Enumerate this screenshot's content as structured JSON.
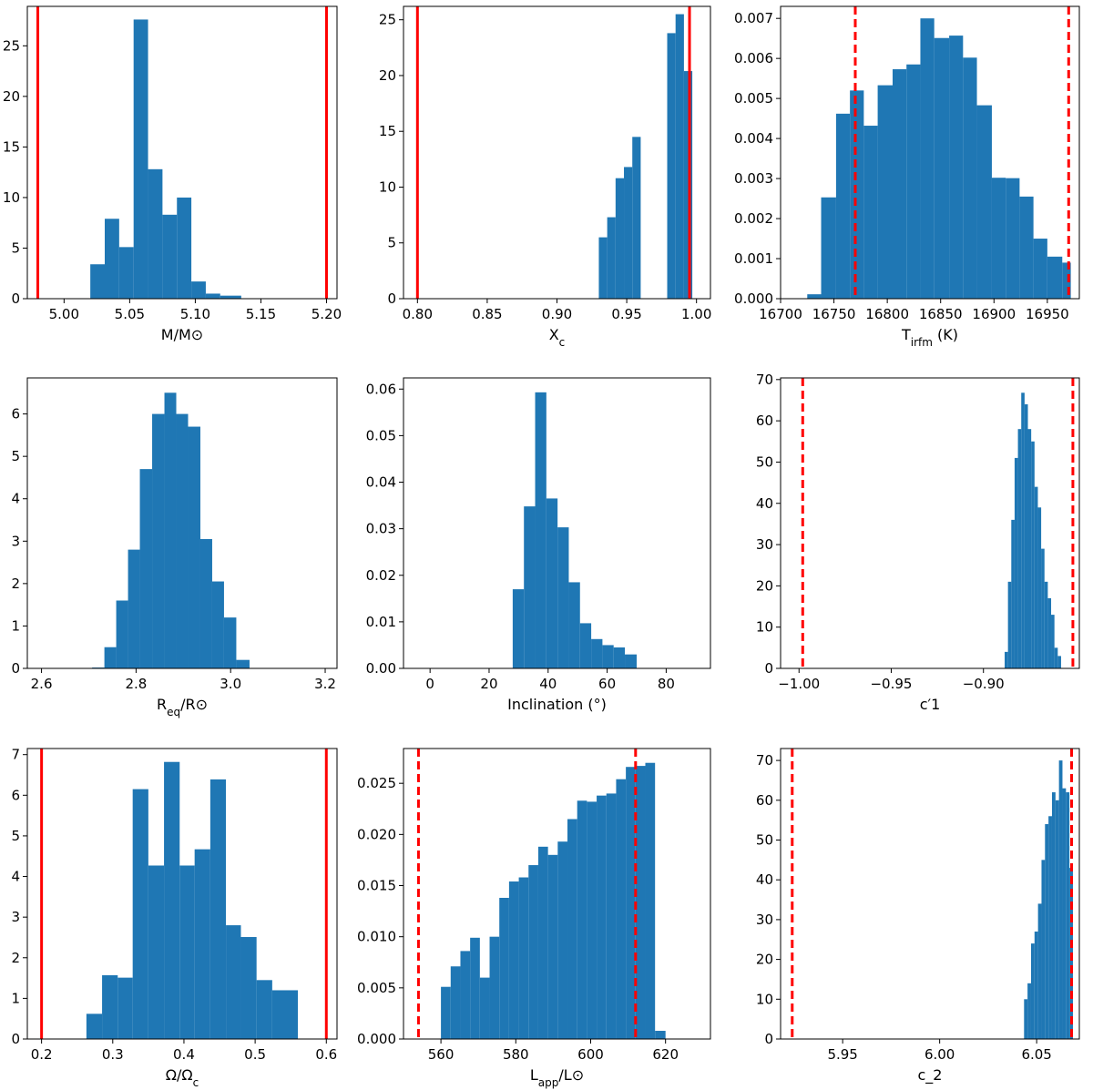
{
  "chart_data": [
    {
      "type": "bar",
      "xlabel": "M/M⊙",
      "xlim": [
        4.972,
        5.208
      ],
      "ylim": [
        0,
        28.9
      ],
      "xticks": [
        5.0,
        5.05,
        5.1,
        5.15,
        5.2
      ],
      "xtick_labels": [
        "5.00",
        "5.05",
        "5.10",
        "5.15",
        "5.20"
      ],
      "yticks": [
        0,
        5,
        10,
        15,
        20,
        25
      ],
      "ytick_labels": [
        "0",
        "5",
        "10",
        "15",
        "20",
        "25"
      ],
      "bins": [
        [
          5.02,
          5.031,
          3.4
        ],
        [
          5.031,
          5.042,
          7.9
        ],
        [
          5.042,
          5.053,
          5.1
        ],
        [
          5.053,
          5.064,
          27.6
        ],
        [
          5.064,
          5.075,
          12.8
        ],
        [
          5.075,
          5.086,
          8.3
        ],
        [
          5.086,
          5.097,
          10.0
        ],
        [
          5.097,
          5.108,
          1.7
        ],
        [
          5.108,
          5.119,
          0.5
        ],
        [
          5.119,
          5.135,
          0.3
        ]
      ],
      "lines": [
        {
          "x": 4.98,
          "style": "solid"
        },
        {
          "x": 5.2,
          "style": "solid"
        }
      ]
    },
    {
      "type": "bar",
      "xlabel": "X_c",
      "xlim": [
        0.79,
        1.01
      ],
      "ylim": [
        0,
        26.2
      ],
      "xticks": [
        0.8,
        0.85,
        0.9,
        0.95,
        1.0
      ],
      "xtick_labels": [
        "0.80",
        "0.85",
        "0.90",
        "0.95",
        "1.00"
      ],
      "yticks": [
        0,
        5,
        10,
        15,
        20,
        25
      ],
      "ytick_labels": [
        "0",
        "5",
        "10",
        "15",
        "20",
        "25"
      ],
      "bins": [
        [
          0.93,
          0.936,
          5.5
        ],
        [
          0.936,
          0.942,
          7.3
        ],
        [
          0.942,
          0.948,
          10.8
        ],
        [
          0.948,
          0.954,
          11.8
        ],
        [
          0.954,
          0.96,
          14.5
        ],
        [
          0.96,
          0.966,
          0.0
        ],
        [
          0.966,
          0.973,
          0.0
        ],
        [
          0.973,
          0.979,
          0.0
        ],
        [
          0.979,
          0.985,
          23.8
        ],
        [
          0.985,
          0.991,
          25.5
        ],
        [
          0.991,
          0.997,
          20.4
        ]
      ],
      "lines": [
        {
          "x": 0.8,
          "style": "solid"
        },
        {
          "x": 0.995,
          "style": "solid"
        }
      ]
    },
    {
      "type": "bar",
      "xlabel": "T_irfm (K)",
      "xlim": [
        16700,
        16980
      ],
      "ylim": [
        0,
        0.0073
      ],
      "xticks": [
        16700,
        16750,
        16800,
        16850,
        16900,
        16950
      ],
      "xtick_labels": [
        "16700",
        "16750",
        "16800",
        "16850",
        "16900",
        "16950"
      ],
      "yticks": [
        0,
        0.001,
        0.002,
        0.003,
        0.004,
        0.005,
        0.006,
        0.007
      ],
      "ytick_labels": [
        "0.000",
        "0.001",
        "0.002",
        "0.003",
        "0.004",
        "0.005",
        "0.006",
        "0.007"
      ],
      "bins": [
        [
          16725,
          16738,
          0.00011
        ],
        [
          16738,
          16752,
          0.00253
        ],
        [
          16752,
          16765,
          0.00462
        ],
        [
          16765,
          16778,
          0.0052
        ],
        [
          16778,
          16791,
          0.00432
        ],
        [
          16791,
          16805,
          0.00533
        ],
        [
          16805,
          16818,
          0.00573
        ],
        [
          16818,
          16831,
          0.00585
        ],
        [
          16831,
          16844,
          0.007
        ],
        [
          16844,
          16858,
          0.00651
        ],
        [
          16858,
          16871,
          0.00657
        ],
        [
          16871,
          16884,
          0.00602
        ],
        [
          16884,
          16898,
          0.00483
        ],
        [
          16898,
          16911,
          0.00302
        ],
        [
          16911,
          16924,
          0.00301
        ],
        [
          16924,
          16937,
          0.00255
        ],
        [
          16937,
          16950,
          0.0015
        ],
        [
          16950,
          16964,
          0.00105
        ],
        [
          16964,
          16972,
          0.0009
        ]
      ],
      "lines": [
        {
          "x": 16770,
          "style": "dashed"
        },
        {
          "x": 16970,
          "style": "dashed"
        }
      ]
    },
    {
      "type": "bar",
      "xlabel": "R_eq/R⊙",
      "xlim": [
        2.57,
        3.225
      ],
      "ylim": [
        0,
        6.85
      ],
      "xticks": [
        2.6,
        2.8,
        3.0,
        3.2
      ],
      "xtick_labels": [
        "2.6",
        "2.8",
        "3.0",
        "3.2"
      ],
      "yticks": [
        0,
        1,
        2,
        3,
        4,
        5,
        6
      ],
      "ytick_labels": [
        "0",
        "1",
        "2",
        "3",
        "4",
        "5",
        "6"
      ],
      "bins": [
        [
          2.707,
          2.733,
          0.02
        ],
        [
          2.733,
          2.758,
          0.5
        ],
        [
          2.758,
          2.783,
          1.6
        ],
        [
          2.783,
          2.808,
          2.8
        ],
        [
          2.808,
          2.834,
          4.7
        ],
        [
          2.834,
          2.86,
          6.0
        ],
        [
          2.86,
          2.885,
          6.5
        ],
        [
          2.885,
          2.91,
          6.0
        ],
        [
          2.91,
          2.936,
          5.7
        ],
        [
          2.936,
          2.961,
          3.05
        ],
        [
          2.961,
          2.986,
          2.05
        ],
        [
          2.986,
          3.012,
          1.2
        ],
        [
          3.012,
          3.04,
          0.2
        ]
      ],
      "lines": []
    },
    {
      "type": "bar",
      "xlabel": "Inclination (°)",
      "xlim": [
        -9,
        95
      ],
      "ylim": [
        0,
        0.0624
      ],
      "xticks": [
        0,
        20,
        40,
        60,
        80
      ],
      "xtick_labels": [
        "0",
        "20",
        "40",
        "60",
        "80"
      ],
      "yticks": [
        0,
        0.01,
        0.02,
        0.03,
        0.04,
        0.05,
        0.06
      ],
      "ytick_labels": [
        "0.00",
        "0.01",
        "0.02",
        "0.03",
        "0.04",
        "0.05",
        "0.06"
      ],
      "bins": [
        [
          28.0,
          31.8,
          0.017
        ],
        [
          31.8,
          35.6,
          0.0348
        ],
        [
          35.6,
          39.4,
          0.0593
        ],
        [
          39.4,
          43.2,
          0.0365
        ],
        [
          43.2,
          47.0,
          0.0303
        ],
        [
          47.0,
          50.8,
          0.0185
        ],
        [
          50.8,
          54.6,
          0.0097
        ],
        [
          54.6,
          58.4,
          0.0063
        ],
        [
          58.4,
          62.2,
          0.005
        ],
        [
          62.2,
          66.0,
          0.0045
        ],
        [
          66.0,
          70.0,
          0.003
        ]
      ],
      "lines": []
    },
    {
      "type": "bar",
      "xlabel": "c′1",
      "xlim": [
        -1.01,
        -0.848
      ],
      "ylim": [
        0,
        70.4
      ],
      "xticks": [
        -1.0,
        -0.95,
        -0.9
      ],
      "xtick_labels": [
        "−1.00",
        "−0.95",
        "−0.90"
      ],
      "yticks": [
        0,
        10,
        20,
        30,
        40,
        50,
        60,
        70
      ],
      "ytick_labels": [
        "0",
        "10",
        "20",
        "30",
        "40",
        "50",
        "60",
        "70"
      ],
      "bins": [
        [
          -0.8885,
          -0.8867,
          4
        ],
        [
          -0.8867,
          -0.8849,
          21
        ],
        [
          -0.8849,
          -0.8831,
          36
        ],
        [
          -0.8831,
          -0.8813,
          51
        ],
        [
          -0.8813,
          -0.8795,
          58
        ],
        [
          -0.8795,
          -0.8777,
          66.8
        ],
        [
          -0.8777,
          -0.8759,
          64
        ],
        [
          -0.8759,
          -0.8741,
          58
        ],
        [
          -0.8741,
          -0.8723,
          55
        ],
        [
          -0.8723,
          -0.8705,
          44
        ],
        [
          -0.8705,
          -0.8687,
          39
        ],
        [
          -0.8687,
          -0.8669,
          29
        ],
        [
          -0.8669,
          -0.8651,
          21
        ],
        [
          -0.8651,
          -0.8633,
          17
        ],
        [
          -0.8633,
          -0.8615,
          13
        ],
        [
          -0.8615,
          -0.8597,
          5
        ],
        [
          -0.8597,
          -0.8579,
          3
        ]
      ],
      "lines": [
        {
          "x": -0.998,
          "style": "dashed"
        },
        {
          "x": -0.8515,
          "style": "dashed"
        }
      ]
    },
    {
      "type": "bar",
      "xlabel": "Ω/Ω_c",
      "xlim": [
        0.18,
        0.615
      ],
      "ylim": [
        0,
        7.15
      ],
      "xticks": [
        0.2,
        0.3,
        0.4,
        0.5,
        0.6
      ],
      "xtick_labels": [
        "0.2",
        "0.3",
        "0.4",
        "0.5",
        "0.6"
      ],
      "yticks": [
        0,
        1,
        2,
        3,
        4,
        5,
        6,
        7
      ],
      "ytick_labels": [
        "0",
        "1",
        "2",
        "3",
        "4",
        "5",
        "6",
        "7"
      ],
      "bins": [
        [
          0.263,
          0.285,
          0.62
        ],
        [
          0.285,
          0.307,
          1.57
        ],
        [
          0.307,
          0.328,
          1.51
        ],
        [
          0.328,
          0.35,
          6.15
        ],
        [
          0.35,
          0.372,
          4.27
        ],
        [
          0.372,
          0.394,
          6.82
        ],
        [
          0.394,
          0.415,
          4.27
        ],
        [
          0.415,
          0.437,
          4.67
        ],
        [
          0.437,
          0.459,
          6.39
        ],
        [
          0.459,
          0.48,
          2.8
        ],
        [
          0.48,
          0.502,
          2.51
        ],
        [
          0.502,
          0.524,
          1.45
        ],
        [
          0.524,
          0.56,
          1.2
        ]
      ],
      "lines": [
        {
          "x": 0.2,
          "style": "solid"
        },
        {
          "x": 0.6,
          "style": "solid"
        }
      ]
    },
    {
      "type": "bar",
      "xlabel": "L_app/L⊙",
      "xlim": [
        550,
        632
      ],
      "ylim": [
        0,
        0.0284
      ],
      "xticks": [
        560,
        580,
        600,
        620
      ],
      "xtick_labels": [
        "560",
        "580",
        "600",
        "620"
      ],
      "yticks": [
        0,
        0.005,
        0.01,
        0.015,
        0.02,
        0.025
      ],
      "ytick_labels": [
        "0.000",
        "0.005",
        "0.010",
        "0.015",
        "0.020",
        "0.025"
      ],
      "bins": [
        [
          560,
          562.6,
          0.0051
        ],
        [
          562.6,
          565.2,
          0.0071
        ],
        [
          565.2,
          567.8,
          0.0086
        ],
        [
          567.8,
          570.4,
          0.0099
        ],
        [
          570.4,
          573.0,
          0.006
        ],
        [
          573.0,
          575.6,
          0.01
        ],
        [
          575.6,
          578.2,
          0.0138
        ],
        [
          578.2,
          580.8,
          0.0154
        ],
        [
          580.8,
          583.4,
          0.0158
        ],
        [
          583.4,
          586.0,
          0.017
        ],
        [
          586.0,
          588.6,
          0.0188
        ],
        [
          588.6,
          591.2,
          0.018
        ],
        [
          591.2,
          593.8,
          0.0193
        ],
        [
          593.8,
          596.4,
          0.0215
        ],
        [
          596.4,
          599.0,
          0.0233
        ],
        [
          599.0,
          601.6,
          0.0232
        ],
        [
          601.6,
          604.2,
          0.0238
        ],
        [
          604.2,
          606.8,
          0.024
        ],
        [
          606.8,
          609.4,
          0.0254
        ],
        [
          609.4,
          612.0,
          0.0266
        ],
        [
          612.0,
          614.6,
          0.0267
        ],
        [
          614.6,
          617.2,
          0.027
        ],
        [
          617.2,
          620.0,
          0.0008
        ]
      ],
      "lines": [
        {
          "x": 554,
          "style": "dashed"
        },
        {
          "x": 612,
          "style": "dashed"
        }
      ]
    },
    {
      "type": "bar",
      "xlabel": "c_2",
      "xlim": [
        5.918,
        6.072
      ],
      "ylim": [
        0,
        73
      ],
      "xticks": [
        5.95,
        6.0,
        6.05
      ],
      "xtick_labels": [
        "5.95",
        "6.00",
        "6.05"
      ],
      "yticks": [
        0,
        10,
        20,
        30,
        40,
        50,
        60,
        70
      ],
      "ytick_labels": [
        "0",
        "10",
        "20",
        "30",
        "40",
        "50",
        "60",
        "70"
      ],
      "bins": [
        [
          6.0435,
          6.0453,
          10
        ],
        [
          6.0453,
          6.0471,
          14
        ],
        [
          6.0471,
          6.0489,
          24
        ],
        [
          6.0489,
          6.0507,
          27
        ],
        [
          6.0507,
          6.0525,
          34
        ],
        [
          6.0525,
          6.0543,
          45
        ],
        [
          6.0543,
          6.0561,
          54
        ],
        [
          6.0561,
          6.0579,
          56
        ],
        [
          6.0579,
          6.0597,
          62
        ],
        [
          6.0597,
          6.0615,
          60
        ],
        [
          6.0615,
          6.0633,
          70
        ],
        [
          6.0633,
          6.0651,
          63
        ],
        [
          6.0651,
          6.0669,
          62
        ],
        [
          6.0669,
          6.0687,
          43
        ]
      ],
      "lines": [
        {
          "x": 5.924,
          "style": "dashed"
        },
        {
          "x": 6.068,
          "style": "dashed"
        }
      ]
    }
  ],
  "colors": {
    "bar": "#1f77b4",
    "vline": "#ff0000",
    "axis": "#000000"
  }
}
